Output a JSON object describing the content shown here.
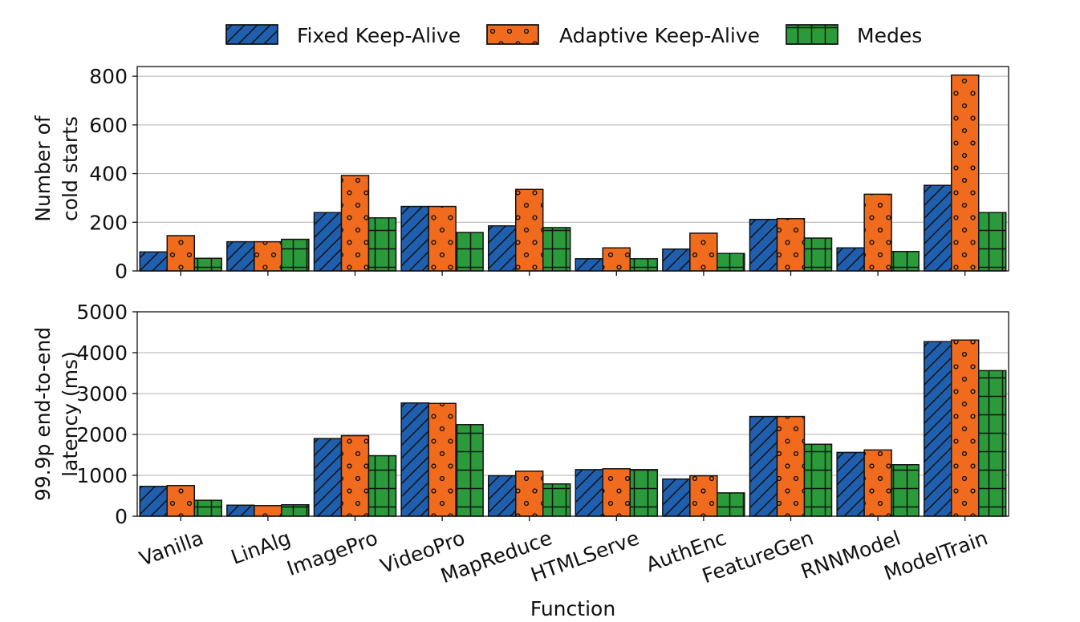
{
  "colors": {
    "fixed": "#1f5fad",
    "adaptive": "#f06b1d",
    "medes": "#2b9a3a"
  },
  "chart_data": [
    {
      "type": "bar",
      "ylabel": [
        "Number of",
        "cold starts"
      ],
      "xlabel": "",
      "ylim": [
        0,
        840
      ],
      "yticks": [
        0,
        200,
        400,
        600,
        800
      ],
      "grid": "horizontal",
      "legend": "top",
      "categories": [
        "Vanilla",
        "LinAlg",
        "ImagePro",
        "VideoPro",
        "MapReduce",
        "HTMLServe",
        "AuthEnc",
        "FeatureGen",
        "RNNModel",
        "ModelTrain"
      ],
      "series": [
        {
          "name": "Fixed Keep-Alive",
          "values": [
            78,
            120,
            240,
            265,
            185,
            50,
            90,
            212,
            95,
            352
          ]
        },
        {
          "name": "Adaptive Keep-Alive",
          "values": [
            145,
            120,
            392,
            265,
            335,
            95,
            155,
            215,
            315,
            805
          ]
        },
        {
          "name": "Medes",
          "values": [
            52,
            130,
            218,
            158,
            178,
            50,
            72,
            135,
            80,
            240
          ]
        }
      ]
    },
    {
      "type": "bar",
      "ylabel": [
        "99.9p end-to-end",
        "latency (ms)"
      ],
      "xlabel": "Function",
      "ylim": [
        0,
        5000
      ],
      "yticks": [
        0,
        1000,
        2000,
        3000,
        4000,
        5000
      ],
      "grid": "horizontal",
      "categories": [
        "Vanilla",
        "LinAlg",
        "ImagePro",
        "VideoPro",
        "MapReduce",
        "HTMLServe",
        "AuthEnc",
        "FeatureGen",
        "RNNModel",
        "ModelTrain"
      ],
      "series": [
        {
          "name": "Fixed Keep-Alive",
          "values": [
            730,
            270,
            1900,
            2770,
            990,
            1140,
            910,
            2440,
            1560,
            4270
          ]
        },
        {
          "name": "Adaptive Keep-Alive",
          "values": [
            750,
            260,
            1970,
            2760,
            1100,
            1160,
            990,
            2440,
            1620,
            4310
          ]
        },
        {
          "name": "Medes",
          "values": [
            390,
            280,
            1480,
            2240,
            790,
            1140,
            570,
            1760,
            1260,
            3560
          ]
        }
      ]
    }
  ]
}
